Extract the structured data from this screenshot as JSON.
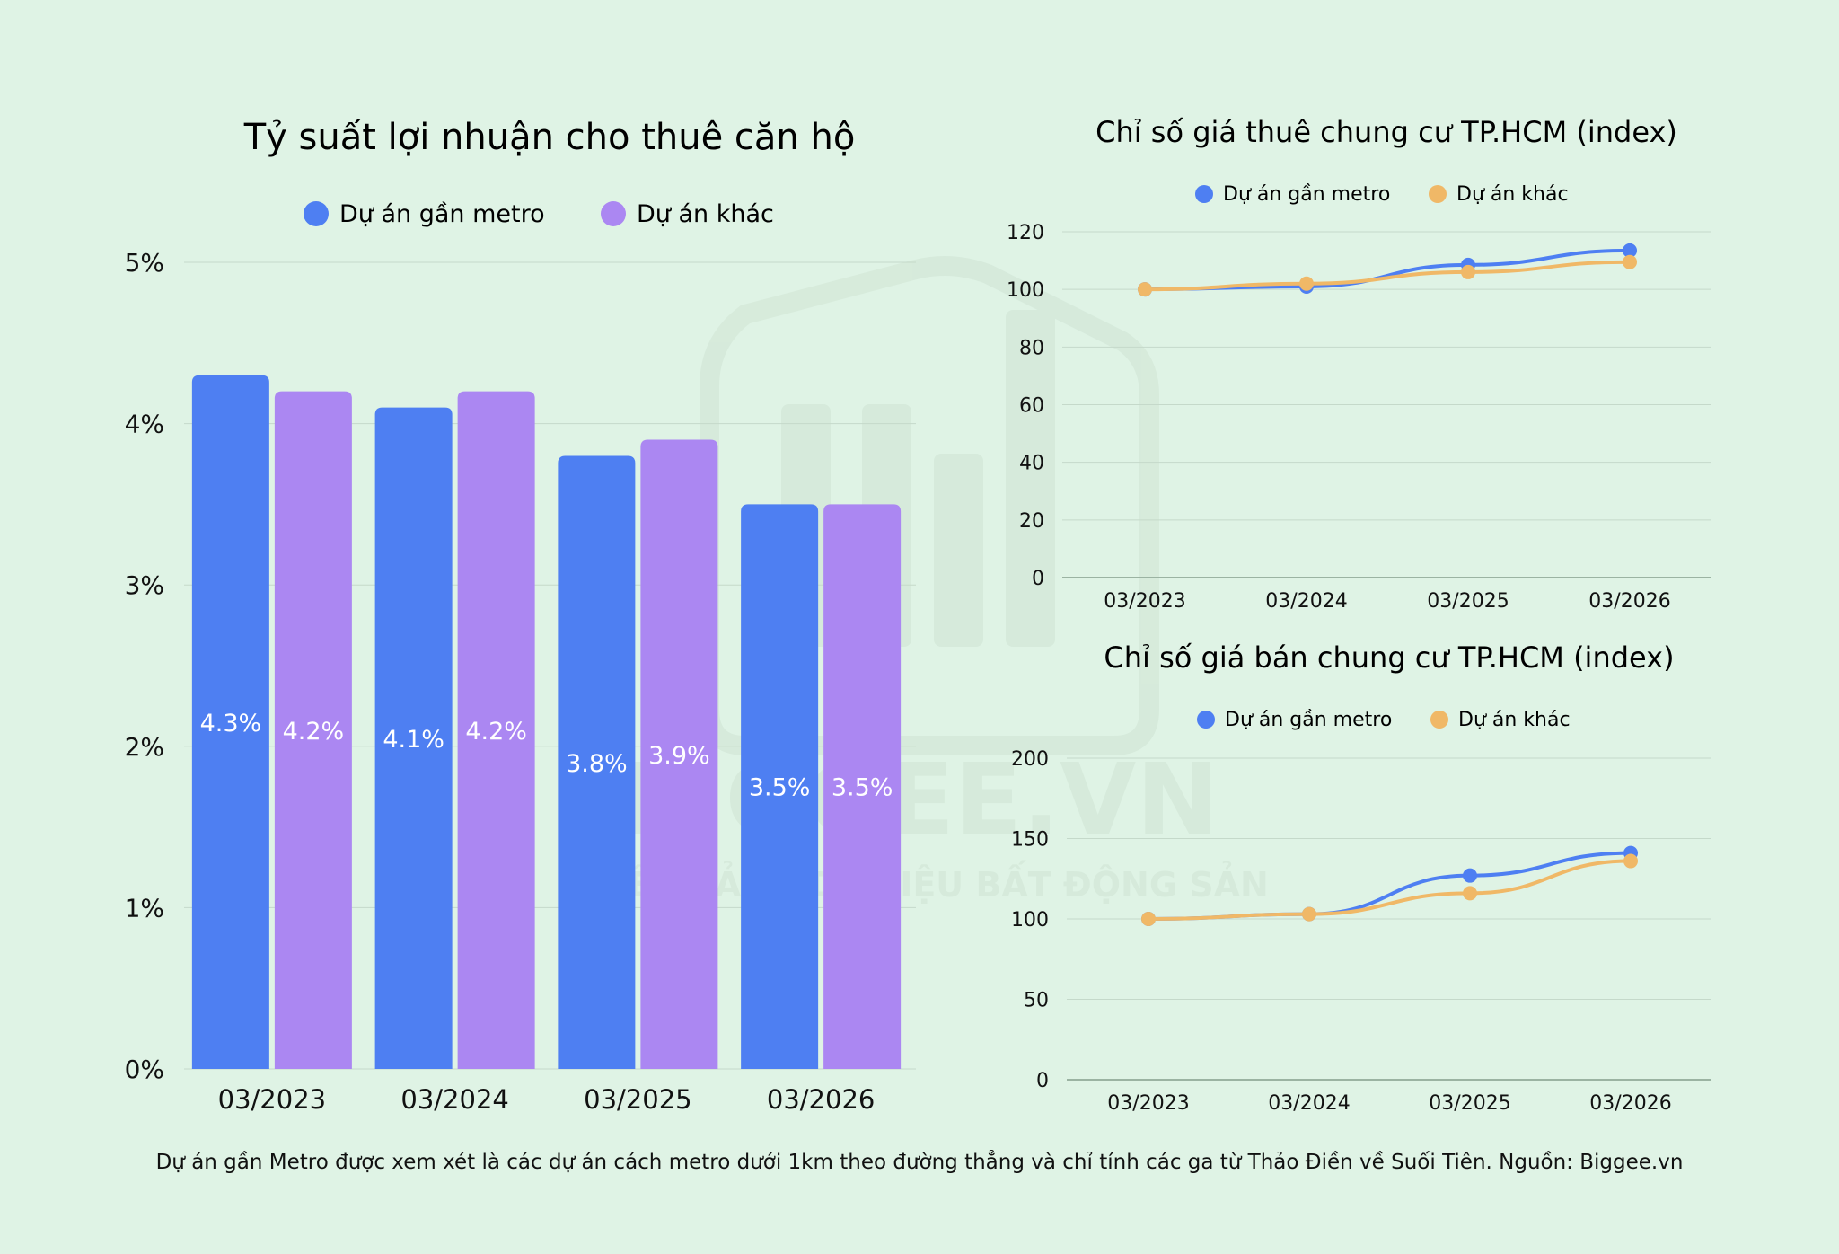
{
  "colors": {
    "metro": "#4e7ff2",
    "other_bar": "#ab87f2",
    "other_line": "#f0b867",
    "grid": "#c5d9ca",
    "background": "#dff3e5"
  },
  "watermark": {
    "brand": "BIGGEE.VN",
    "tagline": "NỀN TẢNG DỮ LIỆU BẤT ĐỘNG SẢN"
  },
  "footnote": "Dự án gần Metro được xem xét là các dự án cách metro dưới 1km theo đường thẳng và chỉ tính các ga từ Thảo Điền về Suối Tiên. Nguồn: Biggee.vn",
  "chart_data": [
    {
      "type": "bar",
      "title": "Tỷ suất lợi nhuận cho thuê căn hộ",
      "categories": [
        "03/2023",
        "03/2024",
        "03/2025",
        "03/2026"
      ],
      "series": [
        {
          "name": "Dự án gần metro",
          "values": [
            4.3,
            4.1,
            3.8,
            3.5
          ],
          "labels": [
            "4.3%",
            "4.1%",
            "3.8%",
            "3.5%"
          ]
        },
        {
          "name": "Dự án khác",
          "values": [
            4.2,
            4.2,
            3.9,
            3.5
          ],
          "labels": [
            "4.2%",
            "4.2%",
            "3.9%",
            "3.5%"
          ]
        }
      ],
      "ylim": [
        0,
        5
      ],
      "yticks": [
        "0%",
        "1%",
        "2%",
        "3%",
        "4%",
        "5%"
      ],
      "legend": "top"
    },
    {
      "type": "line",
      "title": "Chỉ số giá thuê chung cư TP.HCM (index)",
      "categories": [
        "03/2023",
        "03/2024",
        "03/2025",
        "03/2026"
      ],
      "series": [
        {
          "name": "Dự án gần metro",
          "values": [
            100,
            101,
            108.5,
            113.5
          ]
        },
        {
          "name": "Dự án khác",
          "values": [
            100,
            102,
            106,
            109.5
          ]
        }
      ],
      "ylim": [
        0,
        120
      ],
      "yticks": [
        "0",
        "20",
        "40",
        "60",
        "80",
        "100",
        "120"
      ],
      "legend": "top"
    },
    {
      "type": "line",
      "title": "Chỉ số giá bán chung cư TP.HCM (index)",
      "categories": [
        "03/2023",
        "03/2024",
        "03/2025",
        "03/2026"
      ],
      "series": [
        {
          "name": "Dự án gần metro",
          "values": [
            100,
            103,
            127,
            141
          ]
        },
        {
          "name": "Dự án khác",
          "values": [
            100,
            103,
            116,
            136
          ]
        }
      ],
      "ylim": [
        0,
        200
      ],
      "yticks": [
        "0",
        "50",
        "100",
        "150",
        "200"
      ],
      "legend": "top"
    }
  ]
}
